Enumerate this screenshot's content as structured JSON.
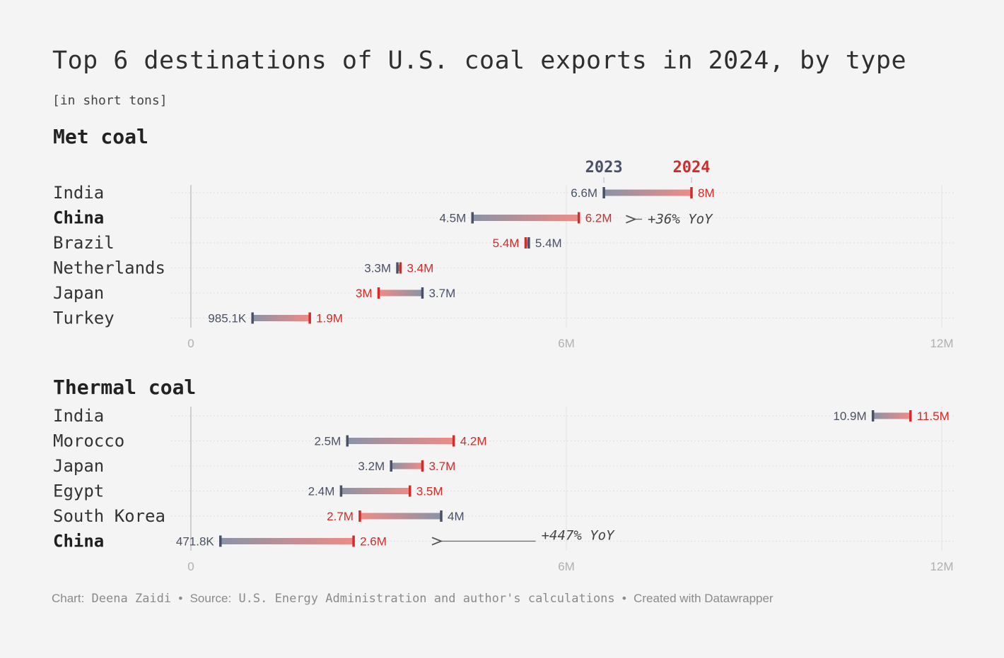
{
  "title": "Top 6 destinations of U.S. coal exports in 2024, by type",
  "subtitle": "[in short tons]",
  "footer": {
    "chart_prefix": "Chart:",
    "chart_author": "Deena Zaidi",
    "sep1": "•",
    "source_prefix": "Source:",
    "source_text": "U.S. Energy Administration and author's calculations",
    "sep2": "•",
    "created": "Created with Datawrapper"
  },
  "colors": {
    "y2023": "#4a5166",
    "y2024": "#d02c2c",
    "grid": "#dcdcdc",
    "axis": "#bdbdbd"
  },
  "chart_data": [
    {
      "type": "range",
      "title": "Met coal",
      "unit": "short tons",
      "xlim": [
        0,
        12000000
      ],
      "ticks": [
        {
          "value": 0,
          "label": "0"
        },
        {
          "value": 6000000,
          "label": "6M"
        },
        {
          "value": 12000000,
          "label": "12M"
        }
      ],
      "legend": [
        {
          "label": "2023",
          "color": "#4a5166",
          "value": 6600000
        },
        {
          "label": "2024",
          "color": "#d02c2c",
          "value": 8000000
        }
      ],
      "rows": [
        {
          "country": "India",
          "bold": false,
          "v2023": 6600000,
          "v2024": 8000000,
          "l2023": "6.6M",
          "l2024": "8M"
        },
        {
          "country": "China",
          "bold": true,
          "v2023": 4500000,
          "v2024": 6200000,
          "l2023": "4.5M",
          "l2024": "6.2M"
        },
        {
          "country": "Brazil",
          "bold": false,
          "v2023": 5400000,
          "v2024": 5350000,
          "l2023": "5.4M",
          "l2024": "5.4M"
        },
        {
          "country": "Netherlands",
          "bold": false,
          "v2023": 3300000,
          "v2024": 3350000,
          "l2023": "3.3M",
          "l2024": "3.4M"
        },
        {
          "country": "Japan",
          "bold": false,
          "v2023": 3700000,
          "v2024": 3000000,
          "l2023": "3.7M",
          "l2024": "3M"
        },
        {
          "country": "Turkey",
          "bold": false,
          "v2023": 985100,
          "v2024": 1900000,
          "l2023": "985.1K",
          "l2024": "1.9M"
        }
      ],
      "annotation": {
        "row": 1,
        "text": "+36% YoY",
        "arrow_to": 7100000,
        "text_at": 7300000
      }
    },
    {
      "type": "range",
      "title": "Thermal coal",
      "unit": "short tons",
      "xlim": [
        0,
        12000000
      ],
      "ticks": [
        {
          "value": 0,
          "label": "0"
        },
        {
          "value": 6000000,
          "label": "6M"
        },
        {
          "value": 12000000,
          "label": "12M"
        }
      ],
      "rows": [
        {
          "country": "India",
          "bold": false,
          "v2023": 10900000,
          "v2024": 11500000,
          "l2023": "10.9M",
          "l2024": "11.5M"
        },
        {
          "country": "Morocco",
          "bold": false,
          "v2023": 2500000,
          "v2024": 4200000,
          "l2023": "2.5M",
          "l2024": "4.2M"
        },
        {
          "country": "Japan",
          "bold": false,
          "v2023": 3200000,
          "v2024": 3700000,
          "l2023": "3.2M",
          "l2024": "3.7M"
        },
        {
          "country": "Egypt",
          "bold": false,
          "v2023": 2400000,
          "v2024": 3500000,
          "l2023": "2.4M",
          "l2024": "3.5M"
        },
        {
          "country": "South Korea",
          "bold": false,
          "v2023": 4000000,
          "v2024": 2700000,
          "l2023": "4M",
          "l2024": "2.7M"
        },
        {
          "country": "China",
          "bold": true,
          "v2023": 471800,
          "v2024": 2600000,
          "l2023": "471.8K",
          "l2024": "2.6M"
        }
      ],
      "annotation": {
        "row": 5,
        "text": "+447% YoY",
        "arrow_to": 4000000,
        "text_at": 5600000
      }
    }
  ]
}
